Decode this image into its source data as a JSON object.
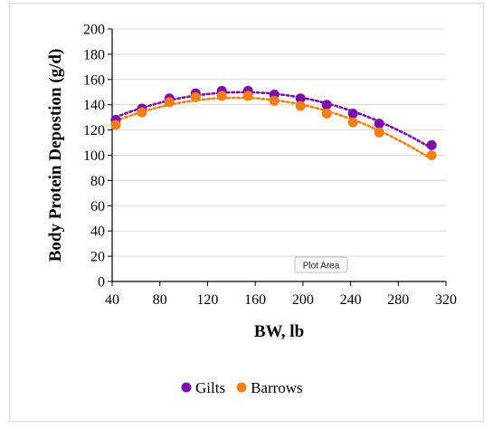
{
  "tooltip": "Plot Area",
  "chart_data": {
    "type": "scatter",
    "xlabel": "BW, lb",
    "ylabel": "Body Protein Depostion (g/d)",
    "xlim": [
      40,
      320
    ],
    "ylim": [
      0,
      200
    ],
    "x_ticks": [
      40,
      80,
      120,
      160,
      200,
      240,
      280,
      320
    ],
    "y_ticks": [
      0,
      20,
      40,
      60,
      80,
      100,
      120,
      140,
      160,
      180,
      200
    ],
    "grid": true,
    "legend_position": "bottom",
    "trendline": "dotted",
    "series": [
      {
        "name": "Gilts",
        "color": "#7b0fa8",
        "points": [
          [
            43,
            128
          ],
          [
            65,
            137
          ],
          [
            88,
            145
          ],
          [
            110,
            149
          ],
          [
            132,
            151
          ],
          [
            154,
            151
          ],
          [
            176,
            148
          ],
          [
            198,
            145
          ],
          [
            220,
            140
          ],
          [
            242,
            133
          ],
          [
            264,
            125
          ],
          [
            308,
            108
          ]
        ]
      },
      {
        "name": "Barrows",
        "color": "#f47f17",
        "points": [
          [
            43,
            124
          ],
          [
            65,
            134
          ],
          [
            88,
            142
          ],
          [
            110,
            146
          ],
          [
            132,
            147
          ],
          [
            154,
            147
          ],
          [
            176,
            143
          ],
          [
            198,
            139
          ],
          [
            220,
            133
          ],
          [
            242,
            126
          ],
          [
            264,
            118
          ],
          [
            308,
            100
          ]
        ]
      }
    ]
  }
}
